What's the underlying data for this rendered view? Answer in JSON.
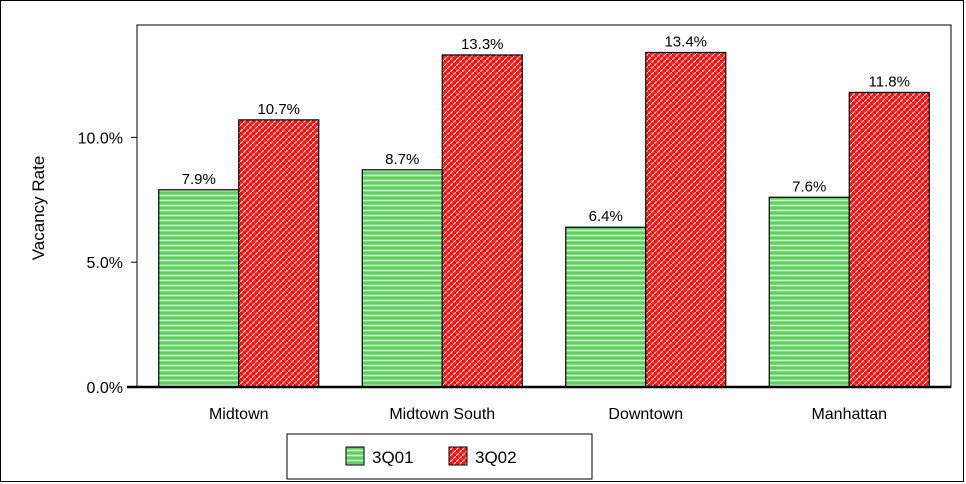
{
  "chart_data": {
    "type": "bar",
    "categories": [
      "Midtown",
      "Midtown South",
      "Downtown",
      "Manhattan"
    ],
    "series": [
      {
        "name": "3Q01",
        "values": [
          7.9,
          8.7,
          6.4,
          7.6
        ],
        "labels": [
          "7.9%",
          "8.7%",
          "6.4%",
          "7.6%"
        ],
        "color": "#7ee07e",
        "pattern": "horizontal-lines"
      },
      {
        "name": "3Q02",
        "values": [
          10.7,
          13.3,
          13.4,
          11.8
        ],
        "labels": [
          "10.7%",
          "13.3%",
          "13.4%",
          "11.8%"
        ],
        "color": "#ff2a2a",
        "pattern": "crosshatch"
      }
    ],
    "ylabel": "Vacancy Rate",
    "xlabel": "",
    "ylim": [
      0,
      14.5
    ],
    "yticks": [
      0,
      5,
      10
    ],
    "ytick_labels": [
      "0.0%",
      "5.0%",
      "10.0%"
    ],
    "grid": false,
    "legend_position": "bottom-center"
  }
}
